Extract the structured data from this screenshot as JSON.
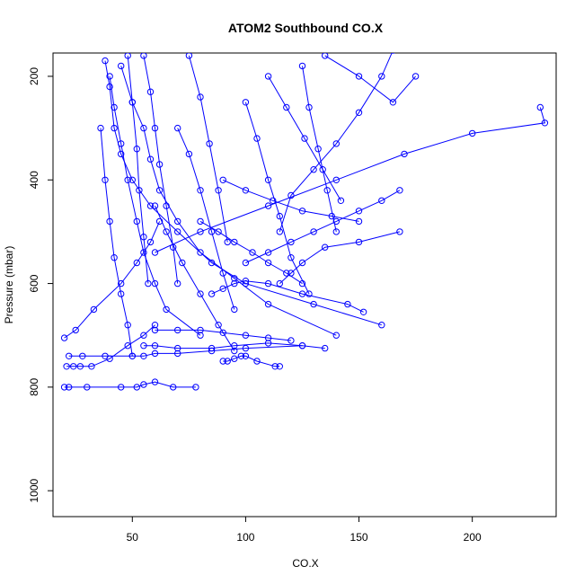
{
  "chart_data": {
    "type": "line",
    "title": "ATOM2 Southbound CO.X",
    "xlabel": "CO.X",
    "ylabel": "Pressure (mbar)",
    "xlim": [
      15,
      237
    ],
    "ylim": [
      1050,
      155
    ],
    "y_reversed": true,
    "grid": false,
    "x_ticks": [
      50,
      100,
      150,
      200
    ],
    "y_ticks": [
      200,
      400,
      600,
      800,
      1000
    ],
    "colors": {
      "series": "#0000ff"
    },
    "marker": "open-circle",
    "series": [
      {
        "x": [
          20,
          22,
          30,
          45,
          52,
          55,
          60,
          68,
          78
        ],
        "y": [
          800,
          800,
          800,
          800,
          800,
          795,
          790,
          800,
          800
        ]
      },
      {
        "x": [
          22,
          28,
          38,
          50,
          55,
          60,
          70,
          85,
          100,
          125
        ],
        "y": [
          740,
          740,
          740,
          740,
          740,
          735,
          735,
          730,
          725,
          720
        ]
      },
      {
        "x": [
          21,
          24,
          27,
          32,
          40,
          48,
          55,
          60
        ],
        "y": [
          760,
          760,
          760,
          760,
          745,
          720,
          700,
          680
        ]
      },
      {
        "x": [
          20,
          25,
          33,
          45,
          52,
          58,
          62
        ],
        "y": [
          705,
          690,
          650,
          600,
          560,
          520,
          480
        ]
      },
      {
        "x": [
          38,
          40,
          42,
          45,
          50,
          58,
          70,
          85,
          100,
          130,
          160
        ],
        "y": [
          170,
          220,
          300,
          350,
          400,
          450,
          500,
          560,
          600,
          640,
          680
        ]
      },
      {
        "x": [
          40,
          42,
          45,
          48,
          52,
          55,
          60,
          65,
          80
        ],
        "y": [
          200,
          260,
          330,
          400,
          480,
          540,
          600,
          650,
          700
        ]
      },
      {
        "x": [
          45,
          50,
          55,
          58,
          62,
          70,
          80,
          95,
          110,
          140
        ],
        "y": [
          180,
          250,
          300,
          360,
          420,
          480,
          540,
          590,
          640,
          700
        ]
      },
      {
        "x": [
          135,
          150,
          165,
          175
        ],
        "y": [
          160,
          200,
          250,
          200
        ]
      },
      {
        "x": [
          230,
          232,
          200,
          170,
          140,
          110,
          80,
          60
        ],
        "y": [
          260,
          290,
          310,
          350,
          400,
          450,
          500,
          540
        ]
      },
      {
        "x": [
          165,
          160,
          150,
          140,
          130,
          120,
          115
        ],
        "y": [
          150,
          200,
          270,
          330,
          380,
          430,
          500
        ]
      },
      {
        "x": [
          100,
          110,
          120,
          130,
          140,
          150,
          160,
          168
        ],
        "y": [
          560,
          540,
          520,
          500,
          480,
          460,
          440,
          420
        ]
      },
      {
        "x": [
          115,
          120,
          125,
          135,
          150,
          168
        ],
        "y": [
          600,
          580,
          560,
          530,
          520,
          500
        ]
      },
      {
        "x": [
          85,
          90,
          95,
          100,
          110,
          125,
          145,
          152
        ],
        "y": [
          620,
          610,
          600,
          595,
          600,
          620,
          640,
          655
        ]
      },
      {
        "x": [
          60,
          70,
          80,
          90,
          100,
          110,
          120
        ],
        "y": [
          690,
          690,
          690,
          695,
          700,
          705,
          710
        ]
      },
      {
        "x": [
          90,
          92,
          95,
          98,
          100,
          105,
          113,
          115
        ],
        "y": [
          750,
          750,
          745,
          740,
          740,
          750,
          760,
          760
        ]
      },
      {
        "x": [
          55,
          60,
          70,
          85,
          95,
          110,
          125,
          135
        ],
        "y": [
          720,
          720,
          725,
          725,
          720,
          715,
          720,
          725
        ]
      },
      {
        "x": [
          70,
          75,
          80,
          85,
          90,
          95
        ],
        "y": [
          300,
          350,
          420,
          500,
          580,
          650
        ]
      },
      {
        "x": [
          75,
          80,
          84,
          88,
          92
        ],
        "y": [
          160,
          240,
          330,
          420,
          520
        ]
      },
      {
        "x": [
          100,
          105,
          110,
          115,
          120,
          128
        ],
        "y": [
          250,
          320,
          400,
          470,
          550,
          620
        ]
      },
      {
        "x": [
          125,
          128,
          132,
          136,
          140
        ],
        "y": [
          180,
          260,
          340,
          420,
          500
        ]
      },
      {
        "x": [
          55,
          58,
          60,
          62,
          65,
          68,
          70
        ],
        "y": [
          160,
          230,
          300,
          370,
          450,
          530,
          600
        ]
      },
      {
        "x": [
          48,
          50,
          52,
          53,
          55,
          57
        ],
        "y": [
          160,
          250,
          340,
          420,
          510,
          600
        ]
      },
      {
        "x": [
          36,
          38,
          40,
          42,
          45,
          48,
          50
        ],
        "y": [
          300,
          400,
          480,
          550,
          620,
          680,
          740
        ]
      },
      {
        "x": [
          60,
          65,
          72,
          80,
          88,
          95
        ],
        "y": [
          450,
          500,
          560,
          620,
          680,
          730
        ]
      },
      {
        "x": [
          80,
          88,
          95,
          103,
          110,
          118,
          125
        ],
        "y": [
          480,
          500,
          520,
          540,
          560,
          580,
          600
        ]
      },
      {
        "x": [
          90,
          100,
          112,
          125,
          138,
          150
        ],
        "y": [
          400,
          420,
          440,
          460,
          470,
          480
        ]
      },
      {
        "x": [
          110,
          118,
          126,
          134,
          142
        ],
        "y": [
          200,
          260,
          320,
          380,
          440
        ]
      }
    ]
  }
}
